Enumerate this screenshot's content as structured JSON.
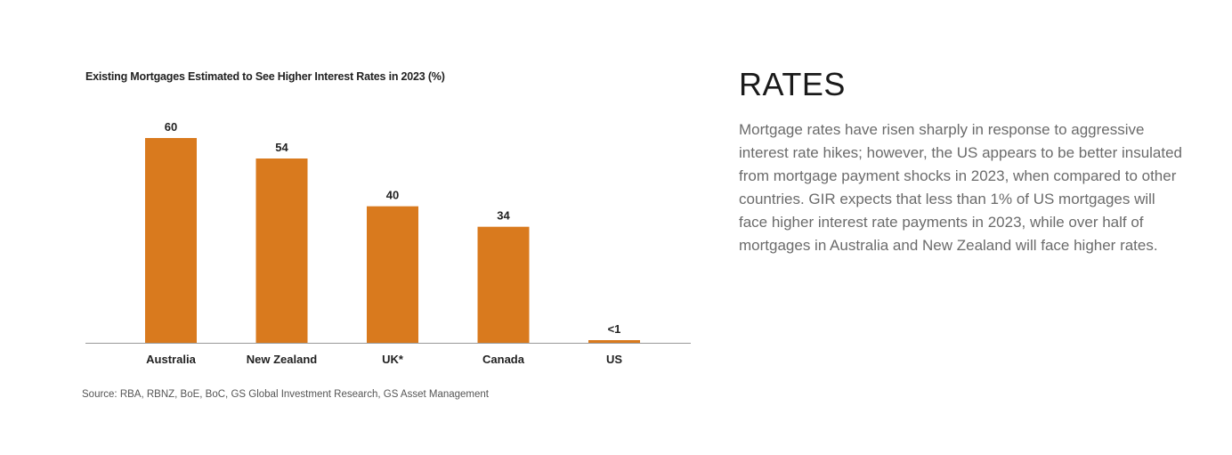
{
  "chart_data": {
    "type": "bar",
    "title": "Existing Mortgages Estimated to See Higher Interest Rates in 2023 (%)",
    "categories": [
      "Australia",
      "New Zealand",
      "UK*",
      "Canada",
      "US"
    ],
    "values": [
      60,
      54,
      40,
      34,
      0.5
    ],
    "data_labels": [
      "60",
      "54",
      "40",
      "34",
      "<1"
    ],
    "xlabel": "",
    "ylabel": "",
    "ylim": [
      0,
      60
    ],
    "grid": false,
    "bar_color": "#D97A1E",
    "axis_color": "#999999"
  },
  "source": "Source: RBA, RBNZ, BoE, BoC, GS Global Investment Research, GS Asset Management",
  "section": {
    "heading": "RATES",
    "body": "Mortgage rates have risen sharply in response to aggressive interest rate hikes; however, the US appears to be better insulated from mortgage payment shocks in 2023, when compared to other countries. GIR expects that less than 1% of US mortgages will face higher interest rate payments in 2023, while over half of mortgages in Australia and New Zealand will face higher rates."
  }
}
